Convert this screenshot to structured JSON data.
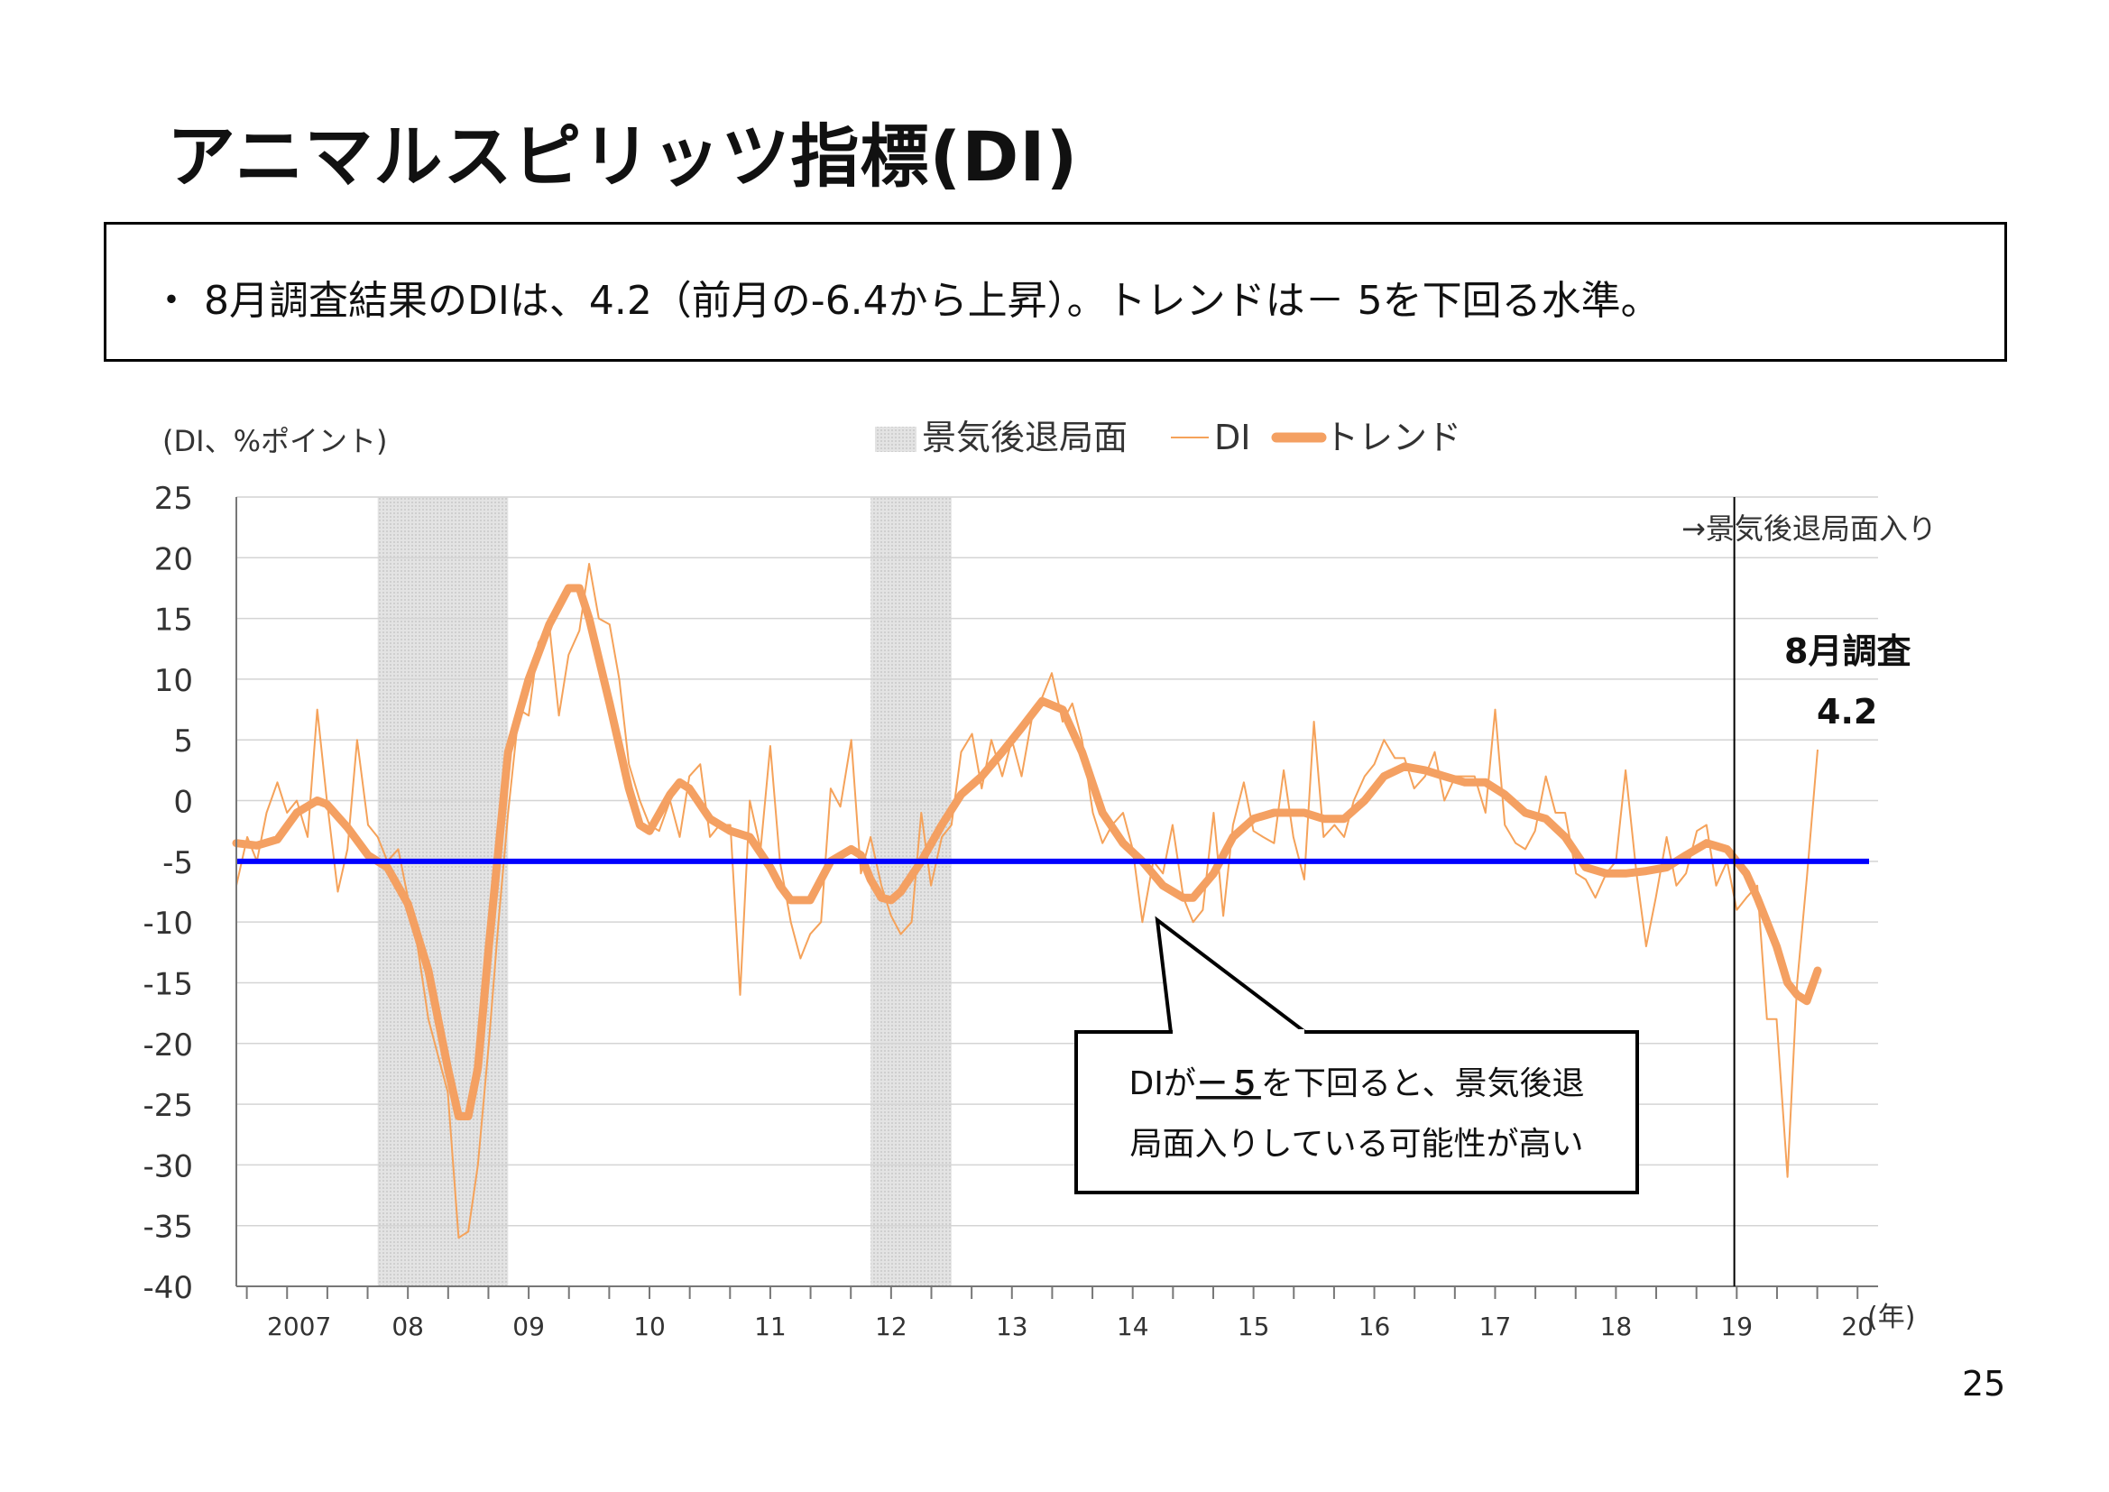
{
  "title": "アニマルスピリッツ指標(DI)",
  "summary": "・ 8月調査結果のDIは、4.2（前月の-6.4から上昇）。トレンドは－ 5を下回る水準。",
  "page_number": "25",
  "chart_data": {
    "type": "line",
    "title": "",
    "ylabel": "(DI、%ポイント)",
    "xlabel": "(年)",
    "ylim": [
      -40,
      25
    ],
    "yticks": [
      25,
      20,
      15,
      10,
      5,
      0,
      -5,
      -10,
      -15,
      -20,
      -25,
      -30,
      -35,
      -40
    ],
    "x_tick_labels": [
      {
        "label": "2007",
        "x": 2007.1
      },
      {
        "label": "08",
        "x": 2008.0
      },
      {
        "label": "09",
        "x": 2009.0
      },
      {
        "label": "10",
        "x": 2010.0
      },
      {
        "label": "11",
        "x": 2011.0
      },
      {
        "label": "12",
        "x": 2012.0
      },
      {
        "label": "13",
        "x": 2013.0
      },
      {
        "label": "14",
        "x": 2014.0
      },
      {
        "label": "15",
        "x": 2015.0
      },
      {
        "label": "16",
        "x": 2016.0
      },
      {
        "label": "17",
        "x": 2017.0
      },
      {
        "label": "18",
        "x": 2018.0
      },
      {
        "label": "19",
        "x": 2019.0
      },
      {
        "label": "20",
        "x": 2020.0
      }
    ],
    "xlim": [
      2006.58,
      2020.17
    ],
    "legend": {
      "position": "top",
      "recession": "景気後退局面",
      "di": "DI",
      "trend": "トレンド"
    },
    "colors": {
      "di": "#F5A25A",
      "trend": "#F4A062",
      "threshold": "#0000FF",
      "recession": "#DCDCDC"
    },
    "recessions": [
      [
        2007.75,
        2008.83
      ],
      [
        2011.83,
        2012.5
      ]
    ],
    "threshold": -5,
    "vline": 2018.98,
    "vline_label": "→景気後退局面入り",
    "latest_label": "8月調査",
    "latest_value": "4.2",
    "callout": {
      "line1_pre": "DIが",
      "line1_mid": "－５",
      "line1_post": "を下回ると、景気後退",
      "line2": "局面入りしている可能性が高い"
    },
    "series": [
      {
        "name": "DI",
        "points": [
          [
            2006.58,
            -7
          ],
          [
            2006.67,
            -3
          ],
          [
            2006.75,
            -5
          ],
          [
            2006.83,
            -1
          ],
          [
            2006.92,
            1.5
          ],
          [
            2007.0,
            -1
          ],
          [
            2007.08,
            0
          ],
          [
            2007.17,
            -3
          ],
          [
            2007.25,
            7.5
          ],
          [
            2007.33,
            0
          ],
          [
            2007.42,
            -7.5
          ],
          [
            2007.5,
            -4
          ],
          [
            2007.58,
            5
          ],
          [
            2007.67,
            -2
          ],
          [
            2007.75,
            -3
          ],
          [
            2007.83,
            -5
          ],
          [
            2007.92,
            -4
          ],
          [
            2008.0,
            -8
          ],
          [
            2008.08,
            -12
          ],
          [
            2008.17,
            -18
          ],
          [
            2008.25,
            -21
          ],
          [
            2008.33,
            -24
          ],
          [
            2008.42,
            -36
          ],
          [
            2008.5,
            -35.5
          ],
          [
            2008.58,
            -30
          ],
          [
            2008.67,
            -20
          ],
          [
            2008.75,
            -10
          ],
          [
            2008.83,
            -1
          ],
          [
            2008.92,
            7.5
          ],
          [
            2009.0,
            7
          ],
          [
            2009.08,
            13
          ],
          [
            2009.17,
            14.5
          ],
          [
            2009.25,
            7
          ],
          [
            2009.33,
            12
          ],
          [
            2009.42,
            14
          ],
          [
            2009.5,
            19.5
          ],
          [
            2009.58,
            15
          ],
          [
            2009.67,
            14.5
          ],
          [
            2009.75,
            10
          ],
          [
            2009.83,
            3
          ],
          [
            2009.92,
            0
          ],
          [
            2010.0,
            -2
          ],
          [
            2010.08,
            -2.5
          ],
          [
            2010.17,
            0
          ],
          [
            2010.25,
            -3
          ],
          [
            2010.33,
            2
          ],
          [
            2010.42,
            3
          ],
          [
            2010.5,
            -3
          ],
          [
            2010.58,
            -2
          ],
          [
            2010.67,
            -2
          ],
          [
            2010.75,
            -16
          ],
          [
            2010.83,
            0
          ],
          [
            2010.92,
            -4
          ],
          [
            2011.0,
            4.5
          ],
          [
            2011.08,
            -5
          ],
          [
            2011.17,
            -10
          ],
          [
            2011.25,
            -13
          ],
          [
            2011.33,
            -11
          ],
          [
            2011.42,
            -10
          ],
          [
            2011.5,
            1
          ],
          [
            2011.58,
            -0.5
          ],
          [
            2011.67,
            5
          ],
          [
            2011.75,
            -6
          ],
          [
            2011.83,
            -3
          ],
          [
            2011.92,
            -7
          ],
          [
            2012.0,
            -9.5
          ],
          [
            2012.08,
            -11
          ],
          [
            2012.17,
            -10
          ],
          [
            2012.25,
            -1
          ],
          [
            2012.33,
            -7
          ],
          [
            2012.42,
            -3
          ],
          [
            2012.5,
            -2
          ],
          [
            2012.58,
            4
          ],
          [
            2012.67,
            5.5
          ],
          [
            2012.75,
            1
          ],
          [
            2012.83,
            5
          ],
          [
            2012.92,
            2
          ],
          [
            2013.0,
            5
          ],
          [
            2013.08,
            2
          ],
          [
            2013.17,
            7
          ],
          [
            2013.25,
            8.5
          ],
          [
            2013.33,
            10.5
          ],
          [
            2013.42,
            6.5
          ],
          [
            2013.5,
            8
          ],
          [
            2013.58,
            5
          ],
          [
            2013.67,
            -1
          ],
          [
            2013.75,
            -3.5
          ],
          [
            2013.83,
            -2
          ],
          [
            2013.92,
            -1
          ],
          [
            2014.0,
            -4
          ],
          [
            2014.08,
            -10
          ],
          [
            2014.17,
            -5
          ],
          [
            2014.25,
            -6
          ],
          [
            2014.33,
            -2
          ],
          [
            2014.42,
            -8
          ],
          [
            2014.5,
            -10
          ],
          [
            2014.58,
            -9
          ],
          [
            2014.67,
            -1
          ],
          [
            2014.75,
            -9.5
          ],
          [
            2014.83,
            -2
          ],
          [
            2014.92,
            1.5
          ],
          [
            2015.0,
            -2.5
          ],
          [
            2015.08,
            -3
          ],
          [
            2015.17,
            -3.5
          ],
          [
            2015.25,
            2.5
          ],
          [
            2015.33,
            -3
          ],
          [
            2015.42,
            -6.5
          ],
          [
            2015.5,
            6.5
          ],
          [
            2015.58,
            -3
          ],
          [
            2015.67,
            -2
          ],
          [
            2015.75,
            -3
          ],
          [
            2015.83,
            0
          ],
          [
            2015.92,
            2
          ],
          [
            2016.0,
            3
          ],
          [
            2016.08,
            5
          ],
          [
            2016.17,
            3.5
          ],
          [
            2016.25,
            3.5
          ],
          [
            2016.33,
            1
          ],
          [
            2016.42,
            2
          ],
          [
            2016.5,
            4
          ],
          [
            2016.58,
            0
          ],
          [
            2016.67,
            2
          ],
          [
            2016.75,
            2
          ],
          [
            2016.83,
            2
          ],
          [
            2016.92,
            -1
          ],
          [
            2017.0,
            7.5
          ],
          [
            2017.08,
            -2
          ],
          [
            2017.17,
            -3.5
          ],
          [
            2017.25,
            -4
          ],
          [
            2017.33,
            -2.5
          ],
          [
            2017.42,
            2
          ],
          [
            2017.5,
            -1
          ],
          [
            2017.58,
            -1
          ],
          [
            2017.67,
            -6
          ],
          [
            2017.75,
            -6.5
          ],
          [
            2017.83,
            -8
          ],
          [
            2017.92,
            -6
          ],
          [
            2018.0,
            -5
          ],
          [
            2018.08,
            2.5
          ],
          [
            2018.17,
            -6
          ],
          [
            2018.25,
            -12
          ],
          [
            2018.33,
            -8
          ],
          [
            2018.42,
            -3
          ],
          [
            2018.5,
            -7
          ],
          [
            2018.58,
            -6
          ],
          [
            2018.67,
            -2.5
          ],
          [
            2018.75,
            -2
          ],
          [
            2018.83,
            -7
          ],
          [
            2018.92,
            -5
          ],
          [
            2019.0,
            -9
          ],
          [
            2019.08,
            -8
          ],
          [
            2019.17,
            -7
          ],
          [
            2019.25,
            -18
          ],
          [
            2019.33,
            -18
          ],
          [
            2019.42,
            -31
          ],
          [
            2019.5,
            -15
          ],
          [
            2019.58,
            -6.4
          ],
          [
            2019.67,
            4.2
          ]
        ]
      },
      {
        "name": "トレンド",
        "points": [
          [
            2006.58,
            -3.5
          ],
          [
            2006.75,
            -3.7
          ],
          [
            2006.92,
            -3.2
          ],
          [
            2007.08,
            -1
          ],
          [
            2007.25,
            0
          ],
          [
            2007.33,
            -0.3
          ],
          [
            2007.5,
            -2.2
          ],
          [
            2007.67,
            -4.5
          ],
          [
            2007.83,
            -5.5
          ],
          [
            2008.0,
            -8.5
          ],
          [
            2008.17,
            -14
          ],
          [
            2008.33,
            -22
          ],
          [
            2008.42,
            -26
          ],
          [
            2008.5,
            -26
          ],
          [
            2008.58,
            -22
          ],
          [
            2008.67,
            -12
          ],
          [
            2008.83,
            4
          ],
          [
            2009.0,
            10
          ],
          [
            2009.17,
            14.5
          ],
          [
            2009.33,
            17.5
          ],
          [
            2009.42,
            17.5
          ],
          [
            2009.5,
            15
          ],
          [
            2009.67,
            8
          ],
          [
            2009.83,
            1
          ],
          [
            2009.92,
            -2
          ],
          [
            2010.0,
            -2.5
          ],
          [
            2010.17,
            0.5
          ],
          [
            2010.25,
            1.5
          ],
          [
            2010.33,
            1
          ],
          [
            2010.5,
            -1.5
          ],
          [
            2010.67,
            -2.5
          ],
          [
            2010.83,
            -3
          ],
          [
            2011.0,
            -5.5
          ],
          [
            2011.08,
            -7
          ],
          [
            2011.17,
            -8.2
          ],
          [
            2011.33,
            -8.2
          ],
          [
            2011.5,
            -5
          ],
          [
            2011.67,
            -4
          ],
          [
            2011.75,
            -4.5
          ],
          [
            2011.83,
            -6.5
          ],
          [
            2011.92,
            -8
          ],
          [
            2012.0,
            -8.2
          ],
          [
            2012.08,
            -7.5
          ],
          [
            2012.25,
            -5
          ],
          [
            2012.42,
            -2
          ],
          [
            2012.58,
            0.5
          ],
          [
            2012.75,
            2
          ],
          [
            2012.92,
            4
          ],
          [
            2013.08,
            6
          ],
          [
            2013.25,
            8.2
          ],
          [
            2013.42,
            7.5
          ],
          [
            2013.58,
            4
          ],
          [
            2013.75,
            -1
          ],
          [
            2013.92,
            -3.5
          ],
          [
            2014.08,
            -5
          ],
          [
            2014.25,
            -7
          ],
          [
            2014.42,
            -8
          ],
          [
            2014.5,
            -8
          ],
          [
            2014.67,
            -6
          ],
          [
            2014.83,
            -3
          ],
          [
            2015.0,
            -1.5
          ],
          [
            2015.17,
            -1
          ],
          [
            2015.42,
            -1
          ],
          [
            2015.58,
            -1.5
          ],
          [
            2015.75,
            -1.5
          ],
          [
            2015.92,
            0
          ],
          [
            2016.08,
            2
          ],
          [
            2016.25,
            2.8
          ],
          [
            2016.42,
            2.5
          ],
          [
            2016.58,
            2
          ],
          [
            2016.75,
            1.5
          ],
          [
            2016.92,
            1.5
          ],
          [
            2017.08,
            0.5
          ],
          [
            2017.25,
            -1
          ],
          [
            2017.42,
            -1.5
          ],
          [
            2017.58,
            -3
          ],
          [
            2017.75,
            -5.5
          ],
          [
            2017.92,
            -6
          ],
          [
            2018.08,
            -6
          ],
          [
            2018.25,
            -5.8
          ],
          [
            2018.42,
            -5.5
          ],
          [
            2018.58,
            -4.5
          ],
          [
            2018.75,
            -3.5
          ],
          [
            2018.92,
            -4
          ],
          [
            2019.08,
            -6
          ],
          [
            2019.17,
            -8
          ],
          [
            2019.33,
            -12
          ],
          [
            2019.42,
            -15
          ],
          [
            2019.5,
            -16
          ],
          [
            2019.58,
            -16.5
          ],
          [
            2019.67,
            -14
          ]
        ]
      }
    ]
  }
}
